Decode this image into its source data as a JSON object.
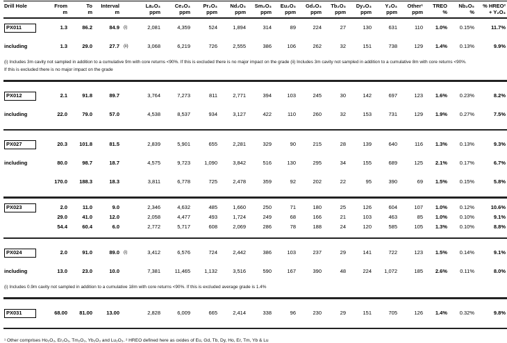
{
  "table": {
    "header": {
      "columns": [
        {
          "t": "Drill Hole",
          "u": ""
        },
        {
          "t": "From",
          "u": "m"
        },
        {
          "t": "To",
          "u": "m"
        },
        {
          "t": "Interval",
          "u": "m"
        },
        {
          "t": "",
          "u": ""
        },
        {
          "t": "La₂O₃",
          "u": "ppm"
        },
        {
          "t": "Ce₂O₃",
          "u": "ppm"
        },
        {
          "t": "Pr₂O₃",
          "u": "ppm"
        },
        {
          "t": "Nd₂O₃",
          "u": "ppm"
        },
        {
          "t": "Sm₂O₃",
          "u": "ppm"
        },
        {
          "t": "Eu₂O₃",
          "u": "ppm"
        },
        {
          "t": "Gd₂O₃",
          "u": "ppm"
        },
        {
          "t": "Tb₂O₃",
          "u": "ppm"
        },
        {
          "t": "Dy₂O₃",
          "u": "ppm"
        },
        {
          "t": "Y₂O₃",
          "u": "ppm"
        },
        {
          "t": "Other¹",
          "u": "ppm"
        },
        {
          "t": "TREO",
          "u": "%"
        },
        {
          "t": "Nb₂O₅",
          "u": "%"
        },
        {
          "t": "% HREO²",
          "u": "+ Y₂O₃"
        }
      ]
    },
    "sections": [
      {
        "rows": [
          {
            "hole": "PX011",
            "boxed": true,
            "tight": false,
            "from": "1.3",
            "to": "86.2",
            "interval": "84.9",
            "marker": "(i)",
            "ppm": [
              "2,081",
              "4,359",
              "524",
              "1,894",
              "314",
              "89",
              "224",
              "27",
              "130",
              "631",
              "110"
            ],
            "treo": "1.0%",
            "nb": "0.15%",
            "hreo": "11.7%"
          },
          {
            "hole": "including",
            "boxed": false,
            "tight": false,
            "from": "1.3",
            "to": "29.0",
            "interval": "27.7",
            "marker": "(ii)",
            "ppm": [
              "3,068",
              "6,219",
              "726",
              "2,555",
              "386",
              "106",
              "262",
              "32",
              "151",
              "738",
              "129"
            ],
            "treo": "1.4%",
            "nb": "0.13%",
            "hreo": "9.9%"
          }
        ],
        "notes": [
          "(i) Includes 3m cavity not sampled in addition to a cumulative 9m with core returns <90%. If this is excluded there is no major impact on the grade (ii) Includes 3m cavity not sampled in addition to a cumulative 8m with core returns <90%.",
          "If this is excluded there is no major impact on the grade"
        ]
      },
      {
        "rows": [
          {
            "hole": "PX012",
            "boxed": true,
            "tight": false,
            "from": "2.1",
            "to": "91.8",
            "interval": "89.7",
            "marker": "",
            "ppm": [
              "3,764",
              "7,273",
              "811",
              "2,771",
              "394",
              "103",
              "245",
              "30",
              "142",
              "697",
              "123"
            ],
            "treo": "1.6%",
            "nb": "0.23%",
            "hreo": "8.2%"
          },
          {
            "hole": "including",
            "boxed": false,
            "tight": false,
            "from": "22.0",
            "to": "79.0",
            "interval": "57.0",
            "marker": "",
            "ppm": [
              "4,538",
              "8,537",
              "934",
              "3,127",
              "422",
              "110",
              "260",
              "32",
              "153",
              "731",
              "129"
            ],
            "treo": "1.9%",
            "nb": "0.27%",
            "hreo": "7.5%"
          }
        ],
        "notes": []
      },
      {
        "rows": [
          {
            "hole": "PX027",
            "boxed": true,
            "tight": false,
            "from": "20.3",
            "to": "101.8",
            "interval": "81.5",
            "marker": "",
            "ppm": [
              "2,839",
              "5,901",
              "655",
              "2,281",
              "329",
              "90",
              "215",
              "28",
              "139",
              "640",
              "116"
            ],
            "treo": "1.3%",
            "nb": "0.13%",
            "hreo": "9.3%"
          },
          {
            "hole": "including",
            "boxed": false,
            "tight": false,
            "from": "80.0",
            "to": "98.7",
            "interval": "18.7",
            "marker": "",
            "ppm": [
              "4,575",
              "9,723",
              "1,090",
              "3,842",
              "516",
              "130",
              "295",
              "34",
              "155",
              "689",
              "125"
            ],
            "treo": "2.1%",
            "nb": "0.17%",
            "hreo": "6.7%"
          },
          {
            "hole": "",
            "boxed": false,
            "tight": false,
            "from": "170.0",
            "to": "188.3",
            "interval": "18.3",
            "marker": "",
            "ppm": [
              "3,811",
              "6,778",
              "725",
              "2,478",
              "359",
              "92",
              "202",
              "22",
              "95",
              "390",
              "69"
            ],
            "treo": "1.5%",
            "nb": "0.15%",
            "hreo": "5.8%"
          }
        ],
        "notes": []
      },
      {
        "rows": [
          {
            "hole": "PX023",
            "boxed": true,
            "tight": true,
            "from": "2.0",
            "to": "11.0",
            "interval": "9.0",
            "marker": "",
            "ppm": [
              "2,346",
              "4,632",
              "485",
              "1,660",
              "250",
              "71",
              "180",
              "25",
              "126",
              "604",
              "107"
            ],
            "treo": "1.0%",
            "nb": "0.12%",
            "hreo": "10.6%"
          },
          {
            "hole": "",
            "boxed": false,
            "tight": true,
            "from": "29.0",
            "to": "41.0",
            "interval": "12.0",
            "marker": "",
            "ppm": [
              "2,058",
              "4,477",
              "493",
              "1,724",
              "249",
              "68",
              "166",
              "21",
              "103",
              "463",
              "85"
            ],
            "treo": "1.0%",
            "nb": "0.10%",
            "hreo": "9.1%"
          },
          {
            "hole": "",
            "boxed": false,
            "tight": true,
            "from": "54.4",
            "to": "60.4",
            "interval": "6.0",
            "marker": "",
            "ppm": [
              "2,772",
              "5,717",
              "608",
              "2,069",
              "286",
              "78",
              "188",
              "24",
              "120",
              "585",
              "105"
            ],
            "treo": "1.3%",
            "nb": "0.10%",
            "hreo": "8.8%"
          }
        ],
        "notes": []
      },
      {
        "rows": [
          {
            "hole": "PX024",
            "boxed": true,
            "tight": false,
            "from": "2.0",
            "to": "91.0",
            "interval": "89.0",
            "marker": "(i)",
            "ppm": [
              "3,412",
              "6,576",
              "724",
              "2,442",
              "386",
              "103",
              "237",
              "29",
              "141",
              "722",
              "123"
            ],
            "treo": "1.5%",
            "nb": "0.14%",
            "hreo": "9.1%"
          },
          {
            "hole": "including",
            "boxed": false,
            "tight": false,
            "from": "13.0",
            "to": "23.0",
            "interval": "10.0",
            "marker": "",
            "ppm": [
              "7,381",
              "11,465",
              "1,132",
              "3,516",
              "590",
              "167",
              "390",
              "48",
              "224",
              "1,072",
              "185"
            ],
            "treo": "2.6%",
            "nb": "0.11%",
            "hreo": "8.0%"
          }
        ],
        "notes": [
          "(i) Includes 0.9m cavity not sampled in addition to a cumulative 18m with core returns <90%. If this is excluded average grade is 1.4%"
        ]
      },
      {
        "rows": [
          {
            "hole": "PX031",
            "boxed": true,
            "tight": false,
            "from": "68.00",
            "to": "81.00",
            "interval": "13.00",
            "marker": "",
            "ppm": [
              "2,828",
              "6,009",
              "665",
              "2,414",
              "338",
              "96",
              "230",
              "29",
              "151",
              "705",
              "126"
            ],
            "treo": "1.4%",
            "nb": "0.32%",
            "hreo": "9.8%"
          }
        ],
        "notes": []
      }
    ],
    "footnote": "¹ Other comprises Ho₂O₃, Er₂O₃, Tm₂O₃, Yb₂O₃ and Lu₂O₃. ² HREO defined here as oxides of Eu, Gd, Tb, Dy, Ho, Er, Tm, Yb & Lu"
  }
}
